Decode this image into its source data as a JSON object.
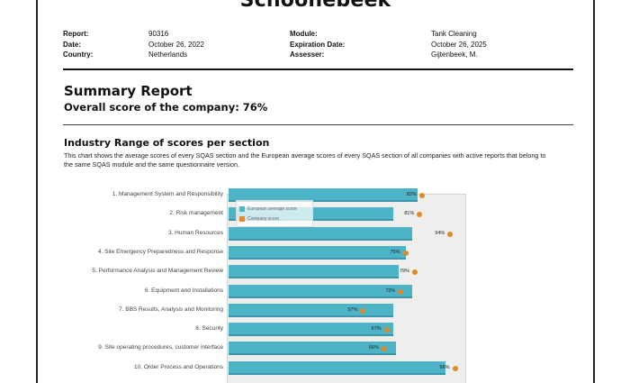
{
  "document": {
    "title": "Schoonebeek",
    "meta_left": [
      {
        "key": "Report:",
        "value": "90316"
      },
      {
        "key": "Date:",
        "value": "October 26, 2022"
      },
      {
        "key": "Country:",
        "value": "Netherlands"
      }
    ],
    "meta_right": [
      {
        "key": "Module:",
        "value": "Tank Cleaning"
      },
      {
        "key": "Expiration Date:",
        "value": "October 26, 2025"
      },
      {
        "key": "Assesser:",
        "value": "Gijtenbeek, M."
      }
    ],
    "summary_title": "Summary Report",
    "overall_score": "Overall score of the company: 76%",
    "section_title": "Industry Range of scores per section",
    "section_description": "This chart shows the average scores of every SQAS section and the European average scores of every SQAS section of all companies with active reports that belong to the same SQAS module and the same questionnaire version."
  },
  "colors": {
    "european_bar": "#4db3c6",
    "company_marker": "#e08a2a"
  },
  "chart_data": {
    "type": "bar",
    "orientation": "horizontal",
    "xlim": [
      0,
      100
    ],
    "legend": [
      "European average score",
      "Company score"
    ],
    "legend_placement": "top-left",
    "categories": [
      "1. Management System and Responsibility",
      "2. Risk management",
      "3. Human Resources",
      "4. Site Emergency Preparedness and Response",
      "5. Performance Analysis and Management Review",
      "6. Equipment and Installations",
      "7. BBS Results, Analysis and Monitoring",
      "8. Security",
      "9. Site operating procedures, customer interface",
      "10. Order Process and Operations"
    ],
    "series": [
      {
        "name": "European average score",
        "values": [
          80,
          70,
          78,
          75,
          72,
          78,
          70,
          70,
          71,
          92
        ]
      },
      {
        "name": "Company score",
        "values": [
          82,
          81,
          94,
          75,
          79,
          73,
          57,
          67,
          66,
          96
        ]
      }
    ],
    "value_labels": [
      "82%",
      "81%",
      "94%",
      "75%",
      "79%",
      "73%",
      "57%",
      "67%",
      "66%",
      "96%"
    ]
  }
}
